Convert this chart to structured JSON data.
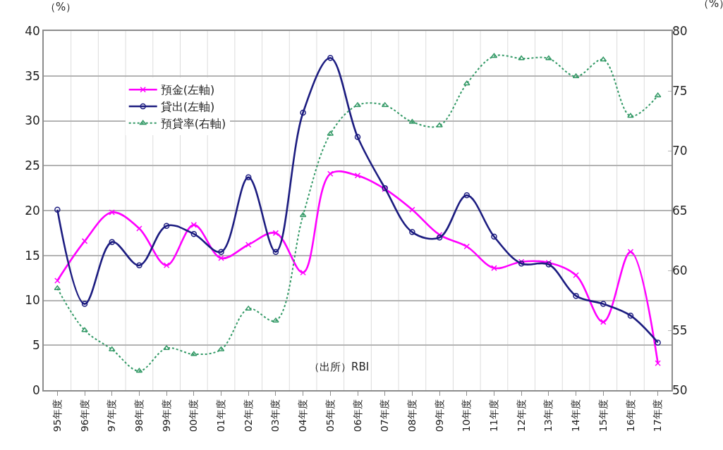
{
  "chart_data": {
    "type": "line",
    "categories": [
      "95年度",
      "96年度",
      "97年度",
      "98年度",
      "99年度",
      "00年度",
      "01年度",
      "02年度",
      "03年度",
      "04年度",
      "05年度",
      "06年度",
      "07年度",
      "08年度",
      "09年度",
      "10年度",
      "11年度",
      "12年度",
      "13年度",
      "14年度",
      "15年度",
      "16年度",
      "17年度"
    ],
    "ylabel": "（%）",
    "y2label": "（%）",
    "annotations": [
      "（出所）RBI"
    ],
    "ylim": [
      0,
      40
    ],
    "yticks": [
      0,
      5,
      10,
      15,
      20,
      25,
      30,
      35,
      40
    ],
    "y2lim": [
      50,
      80
    ],
    "y2ticks": [
      50,
      55,
      60,
      65,
      70,
      75,
      80
    ],
    "grid": true,
    "legend": "top left",
    "series": [
      {
        "name": "預金(左軸)",
        "color": "#ff00ff",
        "marker": "cross",
        "line_style": "solid",
        "values": [
          12.2,
          16.6,
          19.8,
          18.0,
          13.9,
          18.4,
          14.7,
          16.2,
          17.5,
          13.1,
          24.1,
          23.9,
          22.4,
          20.1,
          17.3,
          16.0,
          13.6,
          14.3,
          14.2,
          12.8,
          7.6,
          15.4,
          3.0
        ]
      },
      {
        "name": "貸出(左軸)",
        "color": "#1c1c80",
        "marker": "circle",
        "line_style": "solid",
        "values": [
          20.1,
          9.6,
          16.5,
          13.9,
          18.3,
          17.4,
          15.4,
          23.7,
          15.4,
          30.9,
          37.0,
          28.2,
          22.5,
          17.6,
          17.0,
          21.7,
          17.1,
          14.1,
          14.0,
          10.5,
          9.6,
          8.3,
          5.3
        ]
      },
      {
        "name": "預貸率(右軸)",
        "color": "#339966",
        "marker": "triangle",
        "line_style": "dotted",
        "axis": "y2",
        "values": [
          58.5,
          55.0,
          53.4,
          51.6,
          53.5,
          53.0,
          53.4,
          56.8,
          55.8,
          64.6,
          71.4,
          73.8,
          73.8,
          72.4,
          72.1,
          75.6,
          77.9,
          77.7,
          77.7,
          76.2,
          77.6,
          72.9,
          74.6
        ]
      }
    ]
  }
}
